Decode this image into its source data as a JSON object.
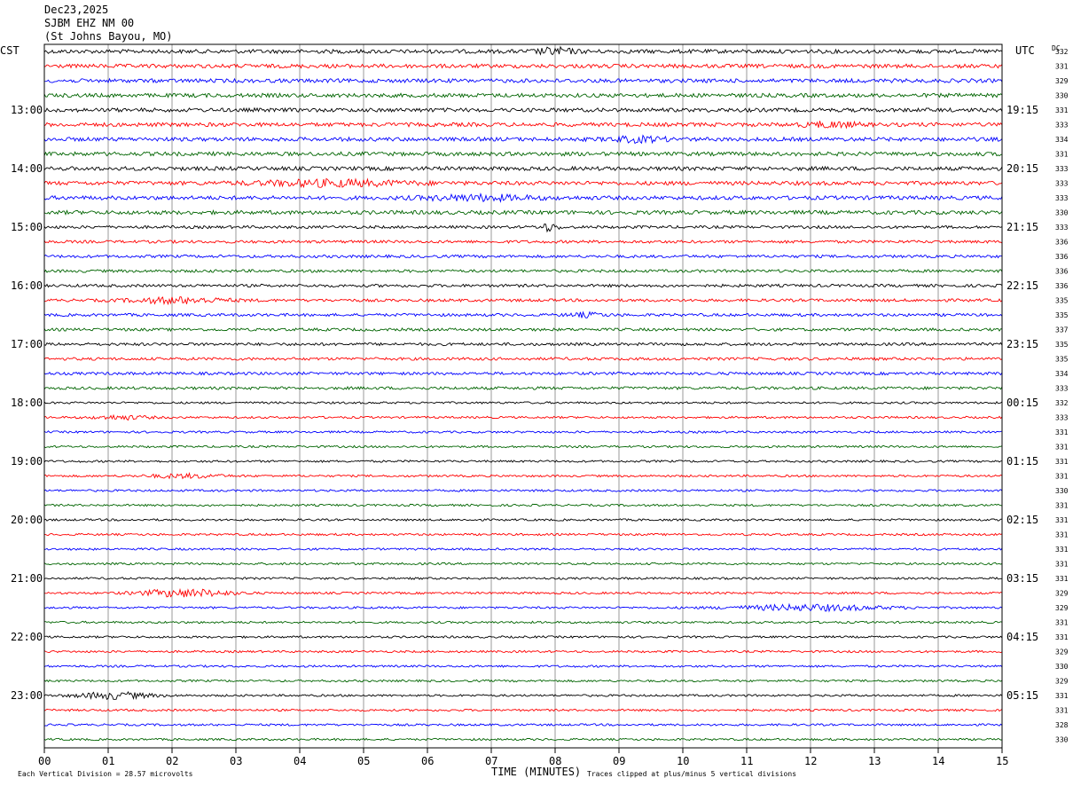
{
  "header": {
    "date": "Dec23,2025",
    "station": "SJBM EHZ NM 00",
    "location": "(St Johns Bayou, MO)"
  },
  "labels": {
    "left_tz": "CST",
    "right_tz": "UTC",
    "dc_header": "DC",
    "xlabel": "TIME (MINUTES)",
    "scale_note": "Each Vertical Division =   28.57 microvolts",
    "clip_note": "Traces clipped at plus/minus 5 vertical divisions"
  },
  "chart_data": {
    "type": "line",
    "chart_kind": "seismogram helicorder",
    "xlim": [
      0,
      15
    ],
    "x_ticks": [
      "00",
      "01",
      "02",
      "03",
      "04",
      "05",
      "06",
      "07",
      "08",
      "09",
      "10",
      "11",
      "12",
      "13",
      "14",
      "15"
    ],
    "trace_count": 48,
    "minutes_per_trace": 15,
    "trace_colors": [
      "#000000",
      "#ff0000",
      "#0000ff",
      "#006400"
    ],
    "grid": "vertical lines every 1 minute",
    "left_hour_labels": [
      "13:00",
      "14:00",
      "15:00",
      "16:00",
      "17:00",
      "18:00",
      "19:00",
      "20:00",
      "21:00",
      "22:00",
      "23:00"
    ],
    "right_hour_labels": [
      "19:15",
      "20:15",
      "21:15",
      "22:15",
      "23:15",
      "00:15",
      "01:15",
      "02:15",
      "03:15",
      "04:15",
      "05:15"
    ],
    "dc_offsets": [
      "332",
      "331",
      "329",
      "330",
      "331",
      "333",
      "334",
      "331",
      "333",
      "333",
      "333",
      "330",
      "333",
      "336",
      "336",
      "336",
      "336",
      "335",
      "335",
      "337",
      "335",
      "335",
      "334",
      "333",
      "332",
      "333",
      "331",
      "331",
      "331",
      "331",
      "330",
      "331",
      "331",
      "331",
      "331",
      "331",
      "331",
      "329",
      "329",
      "331",
      "331",
      "329",
      "330",
      "329",
      "331",
      "331",
      "328",
      "330"
    ]
  }
}
